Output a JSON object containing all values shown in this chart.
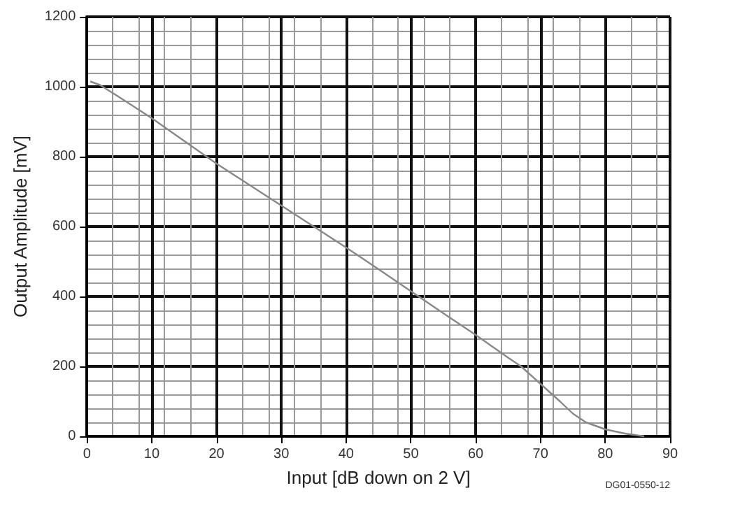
{
  "chart_data": {
    "type": "line",
    "xlabel": "Input [dB down on 2 V]",
    "ylabel": "Output Amplitude [mV]",
    "annotations": [
      "DG01-0550-12"
    ],
    "series": [
      {
        "color": "#888888",
        "x": [
          0.5,
          2,
          5,
          10,
          15,
          20,
          25,
          30,
          35,
          40,
          45,
          50,
          55,
          60,
          65,
          67,
          70,
          73,
          75,
          77,
          80,
          83,
          86
        ],
        "values": [
          1015,
          1005,
          970,
          910,
          845,
          780,
          720,
          660,
          600,
          540,
          478,
          415,
          352,
          290,
          225,
          200,
          150,
          100,
          65,
          40,
          20,
          8,
          0
        ]
      }
    ],
    "xlim": [
      0,
      90
    ],
    "xticks": [
      0,
      10,
      20,
      30,
      40,
      50,
      60,
      70,
      80,
      90
    ],
    "ylim": [
      0,
      1200
    ],
    "yticks": [
      0,
      200,
      400,
      600,
      800,
      1000,
      1200
    ],
    "grid": true,
    "marker": "none",
    "line_style": "solid"
  }
}
